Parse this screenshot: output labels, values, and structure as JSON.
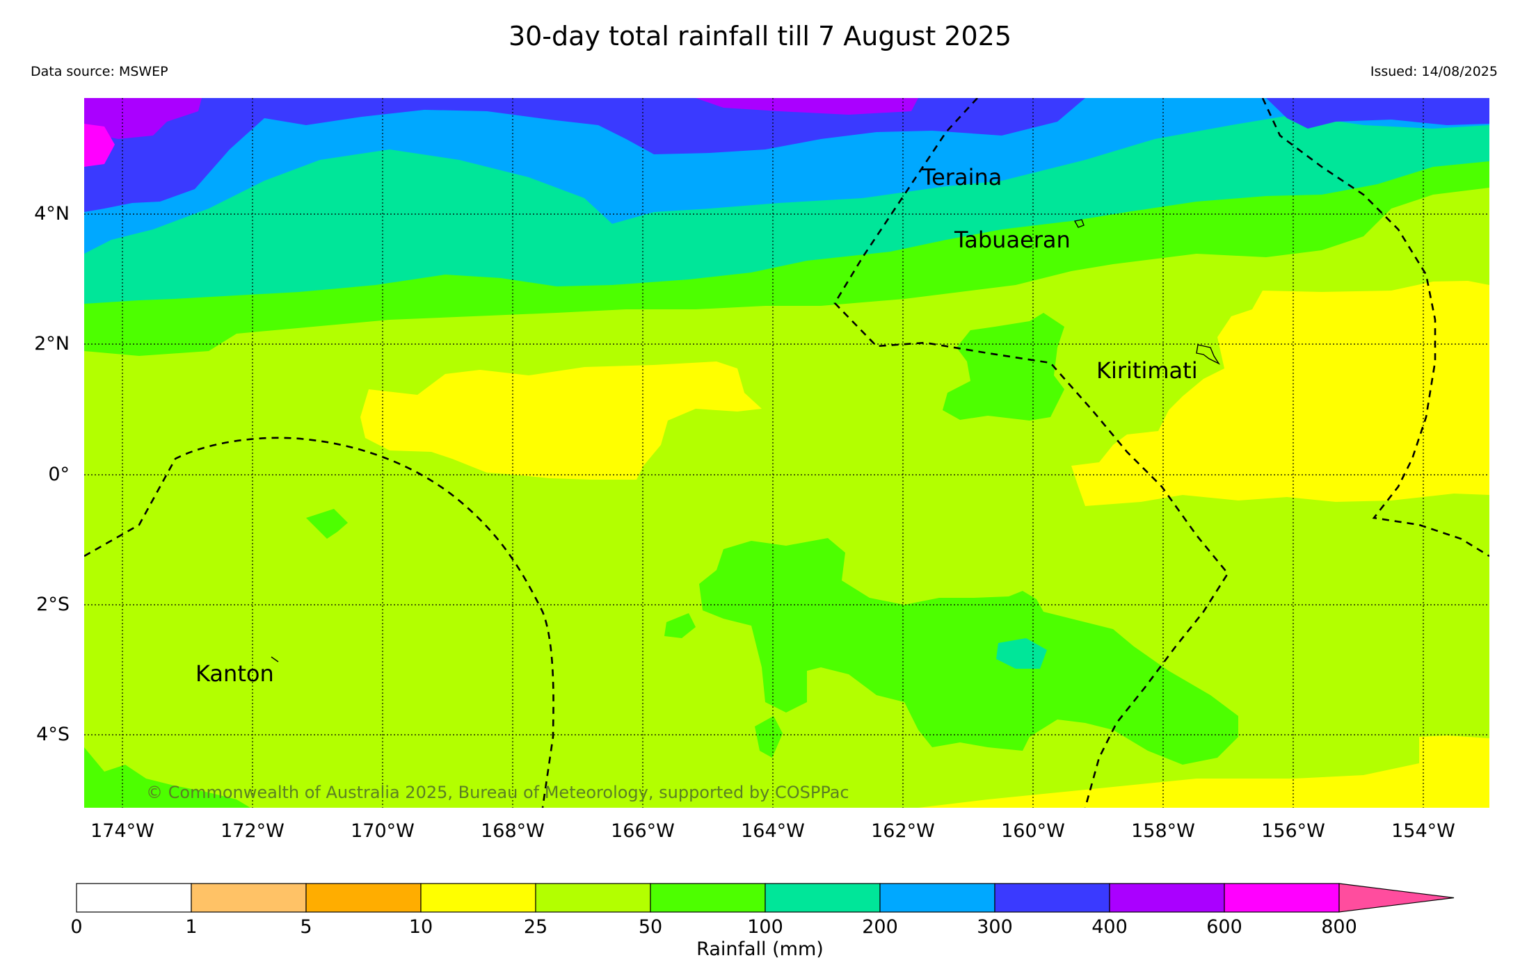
{
  "title": "30-day total rainfall till 7 August 2025",
  "data_source": "Data source: MSWEP",
  "issued": "Issued: 14/08/2025",
  "copyright": "© Commonwealth of Australia 2025, Bureau of Meteorology, supported by COSPPac",
  "map": {
    "lon_range": [
      -174.6,
      -153.0
    ],
    "lat_range": [
      -5.0,
      5.85
    ],
    "lat_ticks": [
      "4°N",
      "2°N",
      "0°",
      "2°S",
      "4°S"
    ],
    "lon_ticks": [
      "174°W",
      "172°W",
      "170°W",
      "168°W",
      "166°W",
      "164°W",
      "162°W",
      "160°W",
      "158°W",
      "156°W",
      "154°W"
    ],
    "places": [
      "Teraina",
      "Tabuaeran",
      "Kiritimati",
      "Kanton"
    ],
    "band_colors": {
      "300-400": "#3a3aff",
      "200-300": "#00a8ff",
      "100-200": "#00e699",
      "50-100": "#4dff00",
      "25-50": "#b3ff00",
      "10-25": "#ffff00",
      "600-800": "#ff00ff",
      "400-600": "#aa00ff"
    }
  },
  "colorbar": {
    "label": "Rainfall (mm)",
    "ticks": [
      "0",
      "1",
      "5",
      "10",
      "25",
      "50",
      "100",
      "200",
      "300",
      "400",
      "600",
      "800"
    ],
    "colors": [
      "#ffffff",
      "#ffc266",
      "#ffad00",
      "#ffff00",
      "#b3ff00",
      "#4dff00",
      "#00e699",
      "#00a8ff",
      "#3a3aff",
      "#aa00ff",
      "#ff00ff",
      "#ff4d9e"
    ]
  }
}
